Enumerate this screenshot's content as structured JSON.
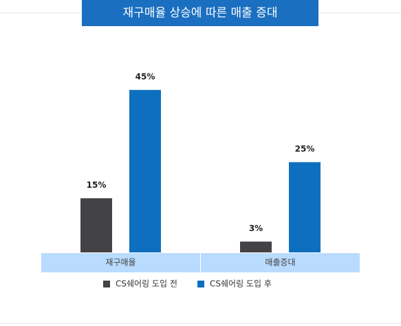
{
  "chart_data": {
    "type": "bar",
    "title": "재구매율 상승에 따른 매출 증대",
    "categories": [
      "재구매율",
      "매출증대"
    ],
    "series": [
      {
        "name": "CS쉐어링 도입 전",
        "color": "#434347",
        "values": [
          15,
          3
        ],
        "value_labels": [
          "15%",
          "3%"
        ]
      },
      {
        "name": "CS쉐어링 도입 후",
        "color": "#0f6fbf",
        "values": [
          45,
          25
        ],
        "value_labels": [
          "45%",
          "25%"
        ]
      }
    ]
  }
}
